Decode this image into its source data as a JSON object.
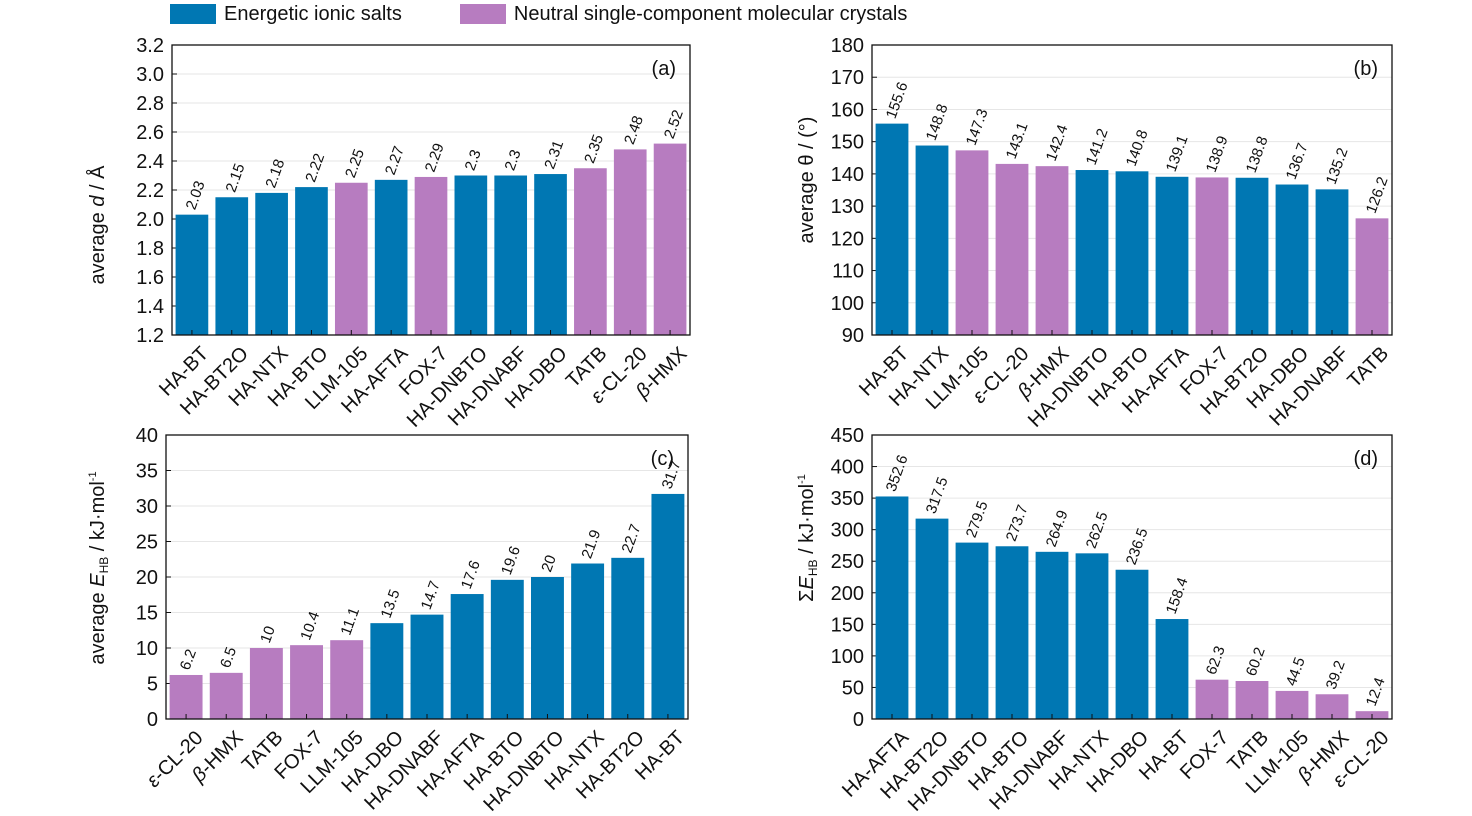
{
  "legend": {
    "items": [
      {
        "label": "Energetic ionic salts",
        "color": "#0077B3"
      },
      {
        "label": "Neutral single-component molecular crystals",
        "color": "#B77CC0"
      }
    ]
  },
  "colors": {
    "ionic": "#0077B3",
    "neutral": "#B77CC0"
  },
  "chart_data": [
    {
      "type": "bar",
      "panel_label": "(a)",
      "ylabel_parts": [
        "average ",
        "d",
        " / Å"
      ],
      "ylim": [
        1.2,
        3.2
      ],
      "yticks": [
        "1.2",
        "1.4",
        "1.6",
        "1.8",
        "2.0",
        "2.2",
        "2.4",
        "2.6",
        "2.8",
        "3.0",
        "3.2"
      ],
      "grid": true,
      "categories": [
        "HA-BT",
        "HA-BT2O",
        "HA-NTX",
        "HA-BTO",
        "LLM-105",
        "HA-AFTA",
        "FOX-7",
        "HA-DNBTO",
        "HA-DNABF",
        "HA-DBO",
        "TATB",
        "ε-CL-20",
        "β-HMX"
      ],
      "values": [
        2.03,
        2.15,
        2.18,
        2.22,
        2.25,
        2.27,
        2.29,
        2.3,
        2.3,
        2.31,
        2.35,
        2.48,
        2.52
      ],
      "value_labels": [
        "2.03",
        "2.15",
        "2.18",
        "2.22",
        "2.25",
        "2.27",
        "2.29",
        "2.3",
        "2.3",
        "2.31",
        "2.35",
        "2.48",
        "2.52"
      ],
      "groups": [
        "ionic",
        "ionic",
        "ionic",
        "ionic",
        "neutral",
        "ionic",
        "neutral",
        "ionic",
        "ionic",
        "ionic",
        "neutral",
        "neutral",
        "neutral"
      ]
    },
    {
      "type": "bar",
      "panel_label": "(b)",
      "ylabel_parts": [
        "average θ / (°)"
      ],
      "ylim": [
        90,
        180
      ],
      "yticks": [
        "90",
        "100",
        "110",
        "120",
        "130",
        "140",
        "150",
        "160",
        "170",
        "180"
      ],
      "grid": true,
      "categories": [
        "HA-BT",
        "HA-NTX",
        "LLM-105",
        "ε-CL-20",
        "β-HMX",
        "HA-DNBTO",
        "HA-BTO",
        "HA-AFTA",
        "FOX-7",
        "HA-BT2O",
        "HA-DBO",
        "HA-DNABF",
        "TATB"
      ],
      "values": [
        155.6,
        148.8,
        147.3,
        143.1,
        142.4,
        141.2,
        140.8,
        139.1,
        138.9,
        138.8,
        136.7,
        135.2,
        126.2
      ],
      "value_labels": [
        "155.6",
        "148.8",
        "147.3",
        "143.1",
        "142.4",
        "141.2",
        "140.8",
        "139.1",
        "138.9",
        "138.8",
        "136.7",
        "135.2",
        "126.2"
      ],
      "groups": [
        "ionic",
        "ionic",
        "neutral",
        "neutral",
        "neutral",
        "ionic",
        "ionic",
        "ionic",
        "neutral",
        "ionic",
        "ionic",
        "ionic",
        "neutral"
      ]
    },
    {
      "type": "bar",
      "panel_label": "(c)",
      "ylabel_parts": [
        "average ",
        "E",
        "HB",
        " / kJ·mol",
        "-1"
      ],
      "ylim": [
        0,
        40
      ],
      "yticks": [
        "0",
        "5",
        "10",
        "15",
        "20",
        "25",
        "30",
        "35",
        "40"
      ],
      "grid": true,
      "categories": [
        "ε-CL-20",
        "β-HMX",
        "TATB",
        "FOX-7",
        "LLM-105",
        "HA-DBO",
        "HA-DNABF",
        "HA-AFTA",
        "HA-BTO",
        "HA-DNBTO",
        "HA-NTX",
        "HA-BT2O",
        "HA-BT"
      ],
      "values": [
        6.2,
        6.5,
        10,
        10.4,
        11.1,
        13.5,
        14.7,
        17.6,
        19.6,
        20,
        21.9,
        22.7,
        31.7
      ],
      "value_labels": [
        "6.2",
        "6.5",
        "10",
        "10.4",
        "11.1",
        "13.5",
        "14.7",
        "17.6",
        "19.6",
        "20",
        "21.9",
        "22.7",
        "31.7"
      ],
      "groups": [
        "neutral",
        "neutral",
        "neutral",
        "neutral",
        "neutral",
        "ionic",
        "ionic",
        "ionic",
        "ionic",
        "ionic",
        "ionic",
        "ionic",
        "ionic"
      ]
    },
    {
      "type": "bar",
      "panel_label": "(d)",
      "ylabel_parts": [
        "Σ",
        "E",
        "HB",
        " / kJ·mol",
        "-1"
      ],
      "ylim": [
        0,
        450
      ],
      "yticks": [
        "0",
        "50",
        "100",
        "150",
        "200",
        "250",
        "300",
        "350",
        "400",
        "450"
      ],
      "grid": true,
      "categories": [
        "HA-AFTA",
        "HA-BT2O",
        "HA-DNBTO",
        "HA-BTO",
        "HA-DNABF",
        "HA-NTX",
        "HA-DBO",
        "HA-BT",
        "FOX-7",
        "TATB",
        "LLM-105",
        "β-HMX",
        "ε-CL-20"
      ],
      "values": [
        352.6,
        317.5,
        279.5,
        273.7,
        264.9,
        262.5,
        236.5,
        158.4,
        62.3,
        60.2,
        44.5,
        39.2,
        12.4
      ],
      "value_labels": [
        "352.6",
        "317.5",
        "279.5",
        "273.7",
        "264.9",
        "262.5",
        "236.5",
        "158.4",
        "62.3",
        "60.2",
        "44.5",
        "39.2",
        "12.4"
      ],
      "groups": [
        "ionic",
        "ionic",
        "ionic",
        "ionic",
        "ionic",
        "ionic",
        "ionic",
        "ionic",
        "neutral",
        "neutral",
        "neutral",
        "neutral",
        "neutral"
      ]
    }
  ]
}
